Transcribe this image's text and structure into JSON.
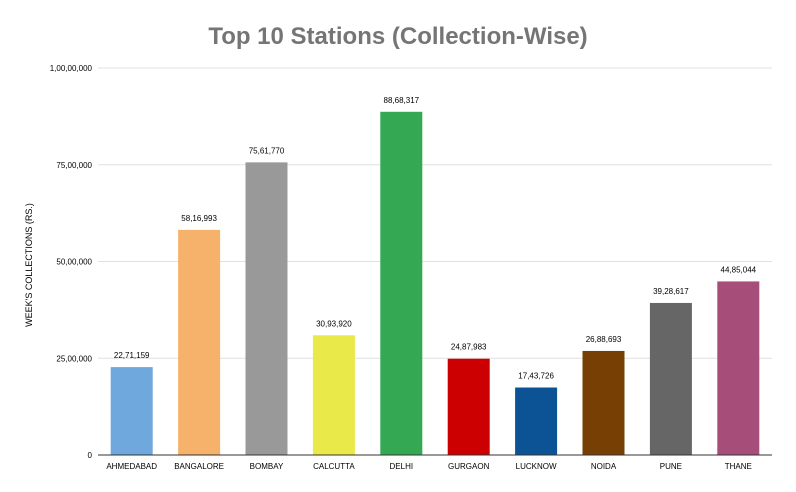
{
  "chart_data": {
    "type": "bar",
    "title": "Top 10 Stations (Collection-Wise)",
    "xlabel": "",
    "ylabel": "WEEK'S COLLECTIONS (RS.)",
    "ylim": [
      0,
      10000000
    ],
    "yticks": [
      0,
      2500000,
      5000000,
      7500000,
      10000000
    ],
    "ytick_labels": [
      "0",
      "25,00,000",
      "50,00,000",
      "75,00,000",
      "1,00,00,000"
    ],
    "grid": true,
    "legend": "none",
    "categories": [
      "AHMEDABAD",
      "BANGALORE",
      "BOMBAY",
      "CALCUTTA",
      "DELHI",
      "GURGAON",
      "LUCKNOW",
      "NOIDA",
      "PUNE",
      "THANE"
    ],
    "values": [
      2271159,
      5816993,
      7561770,
      3093920,
      8868317,
      2487983,
      1743726,
      2688693,
      3928617,
      4485044
    ],
    "value_labels": [
      "22,71,159",
      "58,16,993",
      "75,61,770",
      "30,93,920",
      "88,68,317",
      "24,87,983",
      "17,43,726",
      "26,88,693",
      "39,28,617",
      "44,85,044"
    ],
    "colors": [
      "#6fa8dc",
      "#f6b26b",
      "#999999",
      "#e9e94a",
      "#34a853",
      "#cc0000",
      "#0b5394",
      "#783f04",
      "#666666",
      "#a64d79"
    ]
  }
}
